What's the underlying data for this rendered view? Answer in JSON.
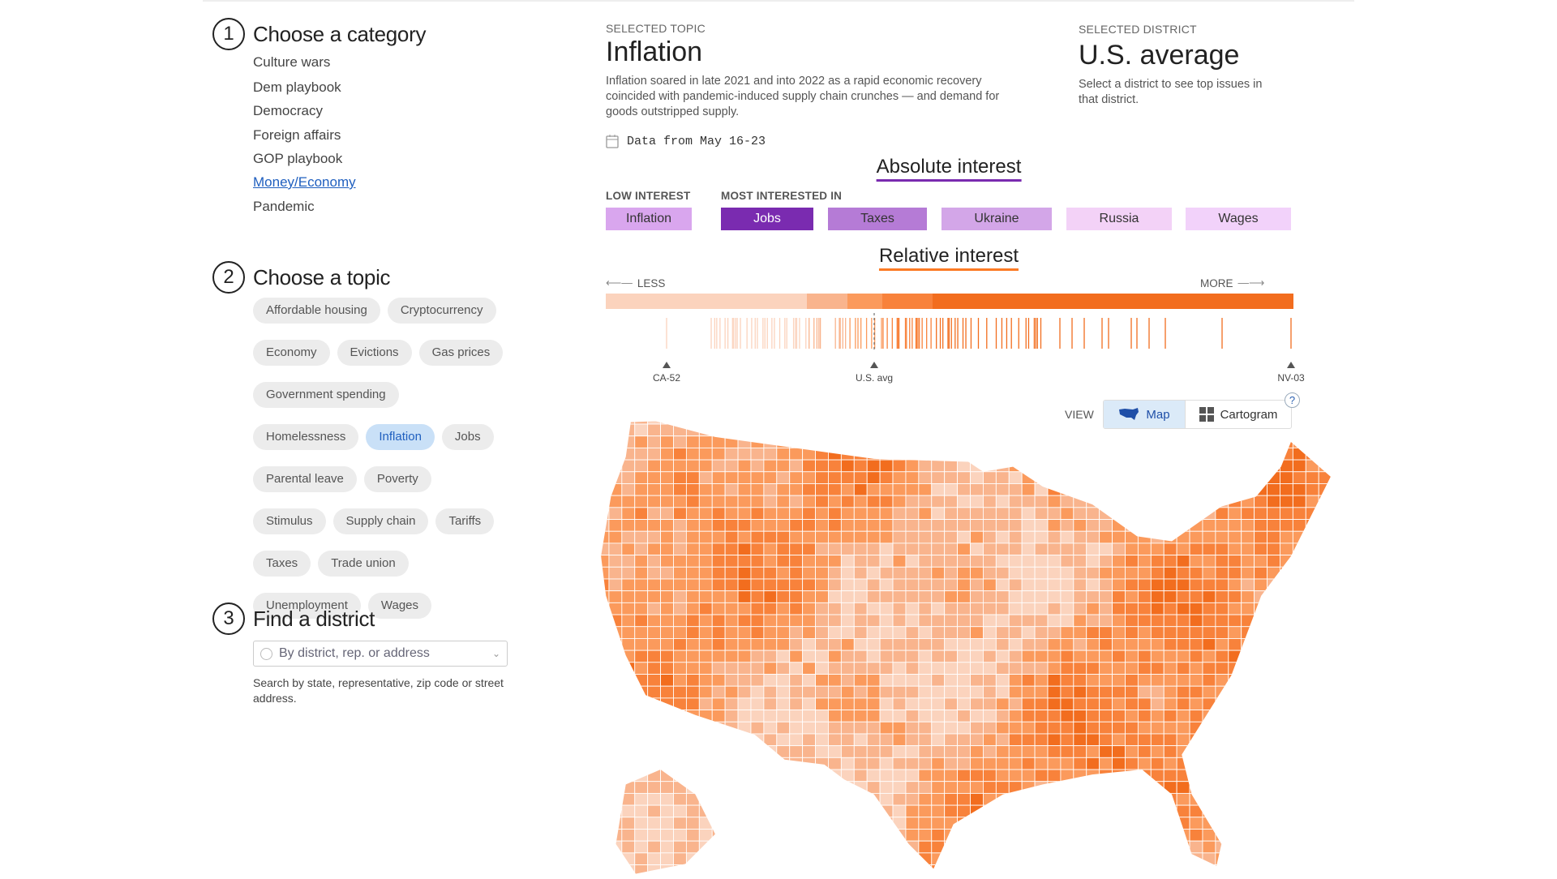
{
  "sidebar": {
    "step1": {
      "number": "1",
      "title": "Choose a category"
    },
    "categories": [
      {
        "label": "Culture wars",
        "active": false
      },
      {
        "label": "Dem playbook",
        "active": false
      },
      {
        "label": "Democracy",
        "active": false
      },
      {
        "label": "Foreign affairs",
        "active": false
      },
      {
        "label": "GOP playbook",
        "active": false
      },
      {
        "label": "Money/Economy",
        "active": true
      },
      {
        "label": "Pandemic",
        "active": false
      }
    ],
    "step2": {
      "number": "2",
      "title": "Choose a topic"
    },
    "topics": [
      {
        "label": "Affordable housing"
      },
      {
        "label": "Cryptocurrency"
      },
      {
        "label": "Economy"
      },
      {
        "label": "Evictions"
      },
      {
        "label": "Gas prices"
      },
      {
        "label": "Government spending"
      },
      {
        "label": "Homelessness"
      },
      {
        "label": "Inflation",
        "active": true
      },
      {
        "label": "Jobs"
      },
      {
        "label": "Parental leave"
      },
      {
        "label": "Poverty"
      },
      {
        "label": "Stimulus"
      },
      {
        "label": "Supply chain"
      },
      {
        "label": "Tariffs"
      },
      {
        "label": "Taxes"
      },
      {
        "label": "Trade union"
      },
      {
        "label": "Unemployment"
      },
      {
        "label": "Wages"
      }
    ],
    "step3": {
      "number": "3",
      "title": "Find a district"
    },
    "search": {
      "placeholder": "By district, rep. or address",
      "help": "Search by state, representative, zip code or street address."
    }
  },
  "topic": {
    "label": "SELECTED TOPIC",
    "title": "Inflation",
    "description": "Inflation soared in late 2021 and into 2022 as a rapid economic recovery coincided with pandemic-induced supply chain crunches — and demand for goods outstripped supply.",
    "date": "Data from May 16-23"
  },
  "district": {
    "label": "SELECTED DISTRICT",
    "title": "U.S. average",
    "description": "Select a district to see top issues in that district."
  },
  "absolute": {
    "title": "Absolute interest",
    "low_label": "LOW INTEREST",
    "most_label": "MOST INTERESTED IN",
    "accent": "#7a2bb0",
    "items": [
      {
        "label": "Inflation",
        "color": "#d9a6ee"
      },
      {
        "label": "Jobs",
        "color": "#7a2bb0"
      },
      {
        "label": "Taxes",
        "color": "#b57bd6"
      },
      {
        "label": "Ukraine",
        "color": "#d3a6e8"
      },
      {
        "label": "Russia",
        "color": "#f3d2f7"
      },
      {
        "label": "Wages",
        "color": "#f2d2fa"
      }
    ]
  },
  "relative": {
    "title": "Relative interest",
    "less": "LESS",
    "more": "MORE",
    "accent": "#fc7a24",
    "markers": [
      {
        "label": "CA-52"
      },
      {
        "label": "U.S. avg"
      },
      {
        "label": "NV-03"
      }
    ],
    "palette": [
      "#fbd3bd",
      "#f9b48d",
      "#fb9a5c",
      "#f8823b",
      "#f26d1e"
    ]
  },
  "view": {
    "label": "VIEW",
    "options": [
      {
        "label": "Map",
        "icon": "us-map-icon",
        "active": true
      },
      {
        "label": "Cartogram",
        "icon": "grid-icon",
        "active": false
      }
    ],
    "help": "?"
  }
}
